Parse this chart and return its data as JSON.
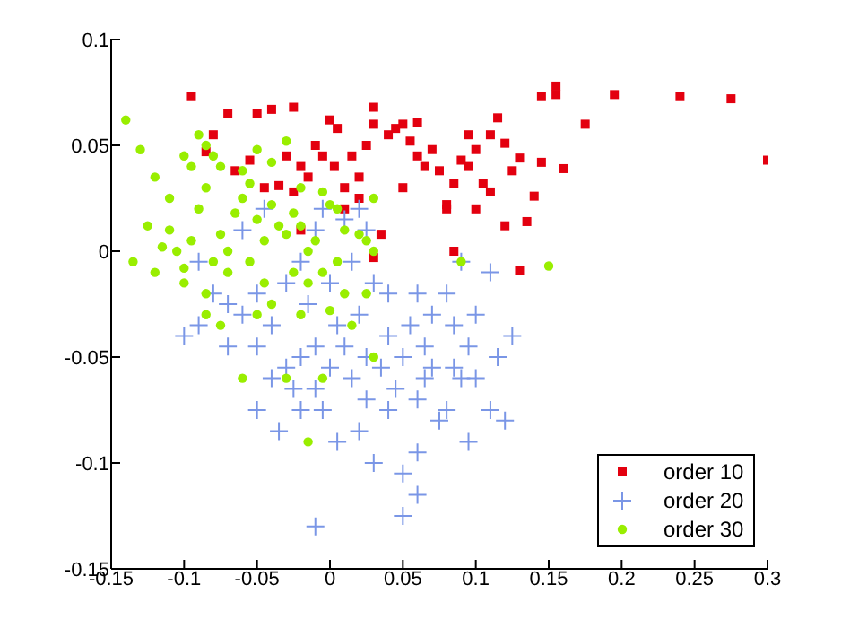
{
  "chart_data": {
    "type": "scatter",
    "xlim": [
      -0.15,
      0.3
    ],
    "xticks": [
      -0.15,
      -0.1,
      -0.05,
      0,
      0.05,
      0.1,
      0.15,
      0.2,
      0.25,
      0.3
    ],
    "ylim": [
      -0.15,
      0.1
    ],
    "yticks": [
      -0.15,
      -0.1,
      -0.05,
      0,
      0.05,
      0.1
    ],
    "grid": false,
    "legend": "bottom right",
    "series": [
      {
        "name": "order 10",
        "color": "#e3000f",
        "marker": "square",
        "x": [
          -0.095,
          -0.07,
          -0.08,
          -0.085,
          -0.065,
          -0.05,
          -0.04,
          -0.025,
          -0.055,
          -0.045,
          -0.035,
          -0.03,
          -0.02,
          -0.025,
          -0.015,
          -0.01,
          -0.005,
          0.0,
          0.005,
          0.003,
          0.01,
          0.015,
          0.02,
          0.02,
          0.025,
          0.03,
          0.03,
          0.04,
          0.045,
          0.05,
          0.055,
          0.06,
          0.06,
          0.05,
          0.065,
          0.07,
          0.075,
          0.085,
          0.09,
          0.1,
          0.105,
          0.1,
          0.08,
          0.095,
          0.12,
          0.13,
          0.11,
          0.125,
          0.14,
          0.145,
          0.155,
          0.155,
          0.175,
          0.195,
          0.24,
          0.275,
          0.3,
          0.12,
          0.085,
          -0.02,
          0.01,
          0.035,
          0.03,
          0.08,
          0.145,
          0.135,
          0.13,
          0.16,
          0.11,
          0.095,
          0.115
        ],
        "values": [
          0.073,
          0.065,
          0.055,
          0.047,
          0.038,
          0.065,
          0.067,
          0.068,
          0.043,
          0.03,
          0.031,
          0.045,
          0.04,
          0.028,
          0.035,
          0.05,
          0.045,
          0.062,
          0.058,
          0.04,
          0.03,
          0.045,
          0.035,
          0.025,
          0.05,
          0.068,
          0.06,
          0.055,
          0.058,
          0.06,
          0.052,
          0.061,
          0.045,
          0.03,
          0.04,
          0.048,
          0.038,
          0.032,
          0.043,
          0.048,
          0.032,
          0.02,
          0.022,
          0.04,
          0.051,
          0.044,
          0.028,
          0.038,
          0.026,
          0.073,
          0.078,
          0.074,
          0.06,
          0.074,
          0.073,
          0.072,
          0.043,
          0.012,
          0.0,
          0.01,
          0.02,
          0.008,
          -0.003,
          0.02,
          0.042,
          0.014,
          -0.009,
          0.039,
          0.055,
          0.055,
          0.063
        ]
      },
      {
        "name": "order 20",
        "color": "#7a96e6",
        "marker": "cross",
        "x": [
          -0.09,
          -0.08,
          -0.07,
          -0.06,
          -0.07,
          -0.1,
          -0.09,
          -0.05,
          -0.04,
          -0.05,
          -0.03,
          -0.03,
          -0.02,
          -0.025,
          -0.02,
          -0.035,
          -0.04,
          -0.01,
          -0.01,
          -0.005,
          0.0,
          0.005,
          0.01,
          0.015,
          0.02,
          0.025,
          0.025,
          0.035,
          0.04,
          0.045,
          0.05,
          0.055,
          0.06,
          0.06,
          0.065,
          0.07,
          0.08,
          0.085,
          0.09,
          0.095,
          0.1,
          0.1,
          0.11,
          0.125,
          0.12,
          0.11,
          0.02,
          0.03,
          0.05,
          0.06,
          -0.01,
          0.05,
          0.06,
          -0.02,
          -0.01,
          -0.005,
          0.01,
          0.0,
          0.015,
          -0.015,
          0.03,
          0.04,
          -0.06,
          -0.045,
          0.02,
          0.025,
          0.04,
          0.075,
          0.08,
          0.095,
          -0.05,
          0.005,
          0.07,
          0.09,
          0.085,
          0.065,
          0.115
        ],
        "values": [
          -0.005,
          -0.02,
          -0.025,
          -0.03,
          -0.045,
          -0.04,
          -0.035,
          -0.045,
          -0.035,
          -0.02,
          -0.015,
          -0.055,
          -0.05,
          -0.065,
          -0.075,
          -0.085,
          -0.06,
          -0.045,
          -0.065,
          -0.075,
          -0.055,
          -0.035,
          -0.045,
          -0.06,
          -0.03,
          -0.05,
          -0.07,
          -0.055,
          -0.04,
          -0.065,
          -0.05,
          -0.035,
          -0.07,
          -0.02,
          -0.045,
          -0.055,
          -0.02,
          -0.035,
          -0.06,
          -0.045,
          -0.03,
          -0.06,
          -0.075,
          -0.04,
          -0.08,
          -0.01,
          -0.085,
          -0.1,
          -0.105,
          -0.095,
          -0.13,
          -0.125,
          -0.115,
          -0.005,
          0.01,
          0.02,
          0.015,
          -0.015,
          -0.005,
          -0.025,
          -0.015,
          -0.02,
          0.01,
          0.02,
          0.02,
          0.01,
          -0.075,
          -0.08,
          -0.075,
          -0.09,
          -0.075,
          -0.09,
          -0.03,
          -0.005,
          -0.055,
          -0.06,
          -0.05
        ]
      },
      {
        "name": "order 30",
        "color": "#99ee00",
        "marker": "circle",
        "x": [
          -0.14,
          -0.13,
          -0.12,
          -0.11,
          -0.1,
          -0.095,
          -0.09,
          -0.085,
          -0.08,
          -0.075,
          -0.11,
          -0.115,
          -0.125,
          -0.135,
          -0.12,
          -0.105,
          -0.1,
          -0.095,
          -0.09,
          -0.085,
          -0.08,
          -0.075,
          -0.07,
          -0.065,
          -0.06,
          -0.055,
          -0.05,
          -0.045,
          -0.04,
          -0.035,
          -0.03,
          -0.025,
          -0.02,
          -0.015,
          -0.01,
          -0.04,
          -0.03,
          -0.05,
          -0.06,
          -0.02,
          -0.005,
          0.0,
          0.005,
          0.01,
          0.02,
          0.025,
          0.03,
          -0.1,
          -0.085,
          -0.07,
          -0.055,
          -0.045,
          -0.025,
          -0.015,
          -0.005,
          0.005,
          0.01,
          -0.05,
          -0.04,
          -0.02,
          0.0,
          0.015,
          -0.06,
          -0.03,
          -0.005,
          0.03,
          -0.015,
          0.09,
          0.15,
          -0.085,
          0.025,
          -0.075,
          0.03
        ],
        "values": [
          0.062,
          0.048,
          0.035,
          0.025,
          0.045,
          0.04,
          0.055,
          0.05,
          0.045,
          0.04,
          0.01,
          0.002,
          0.012,
          -0.005,
          -0.01,
          0.0,
          -0.008,
          0.005,
          0.02,
          0.03,
          -0.005,
          0.008,
          0.0,
          0.018,
          0.025,
          0.032,
          0.015,
          0.005,
          0.022,
          0.012,
          0.008,
          0.018,
          0.012,
          0.0,
          0.005,
          0.042,
          0.052,
          0.048,
          0.038,
          0.03,
          0.028,
          0.022,
          0.02,
          0.01,
          0.008,
          0.005,
          0.0,
          -0.015,
          -0.02,
          -0.01,
          -0.005,
          -0.015,
          -0.01,
          -0.015,
          -0.01,
          -0.005,
          -0.02,
          -0.03,
          -0.025,
          -0.03,
          -0.028,
          -0.035,
          -0.06,
          -0.06,
          -0.06,
          -0.05,
          -0.09,
          -0.005,
          -0.007,
          -0.03,
          -0.02,
          -0.035,
          0.025
        ]
      }
    ]
  }
}
